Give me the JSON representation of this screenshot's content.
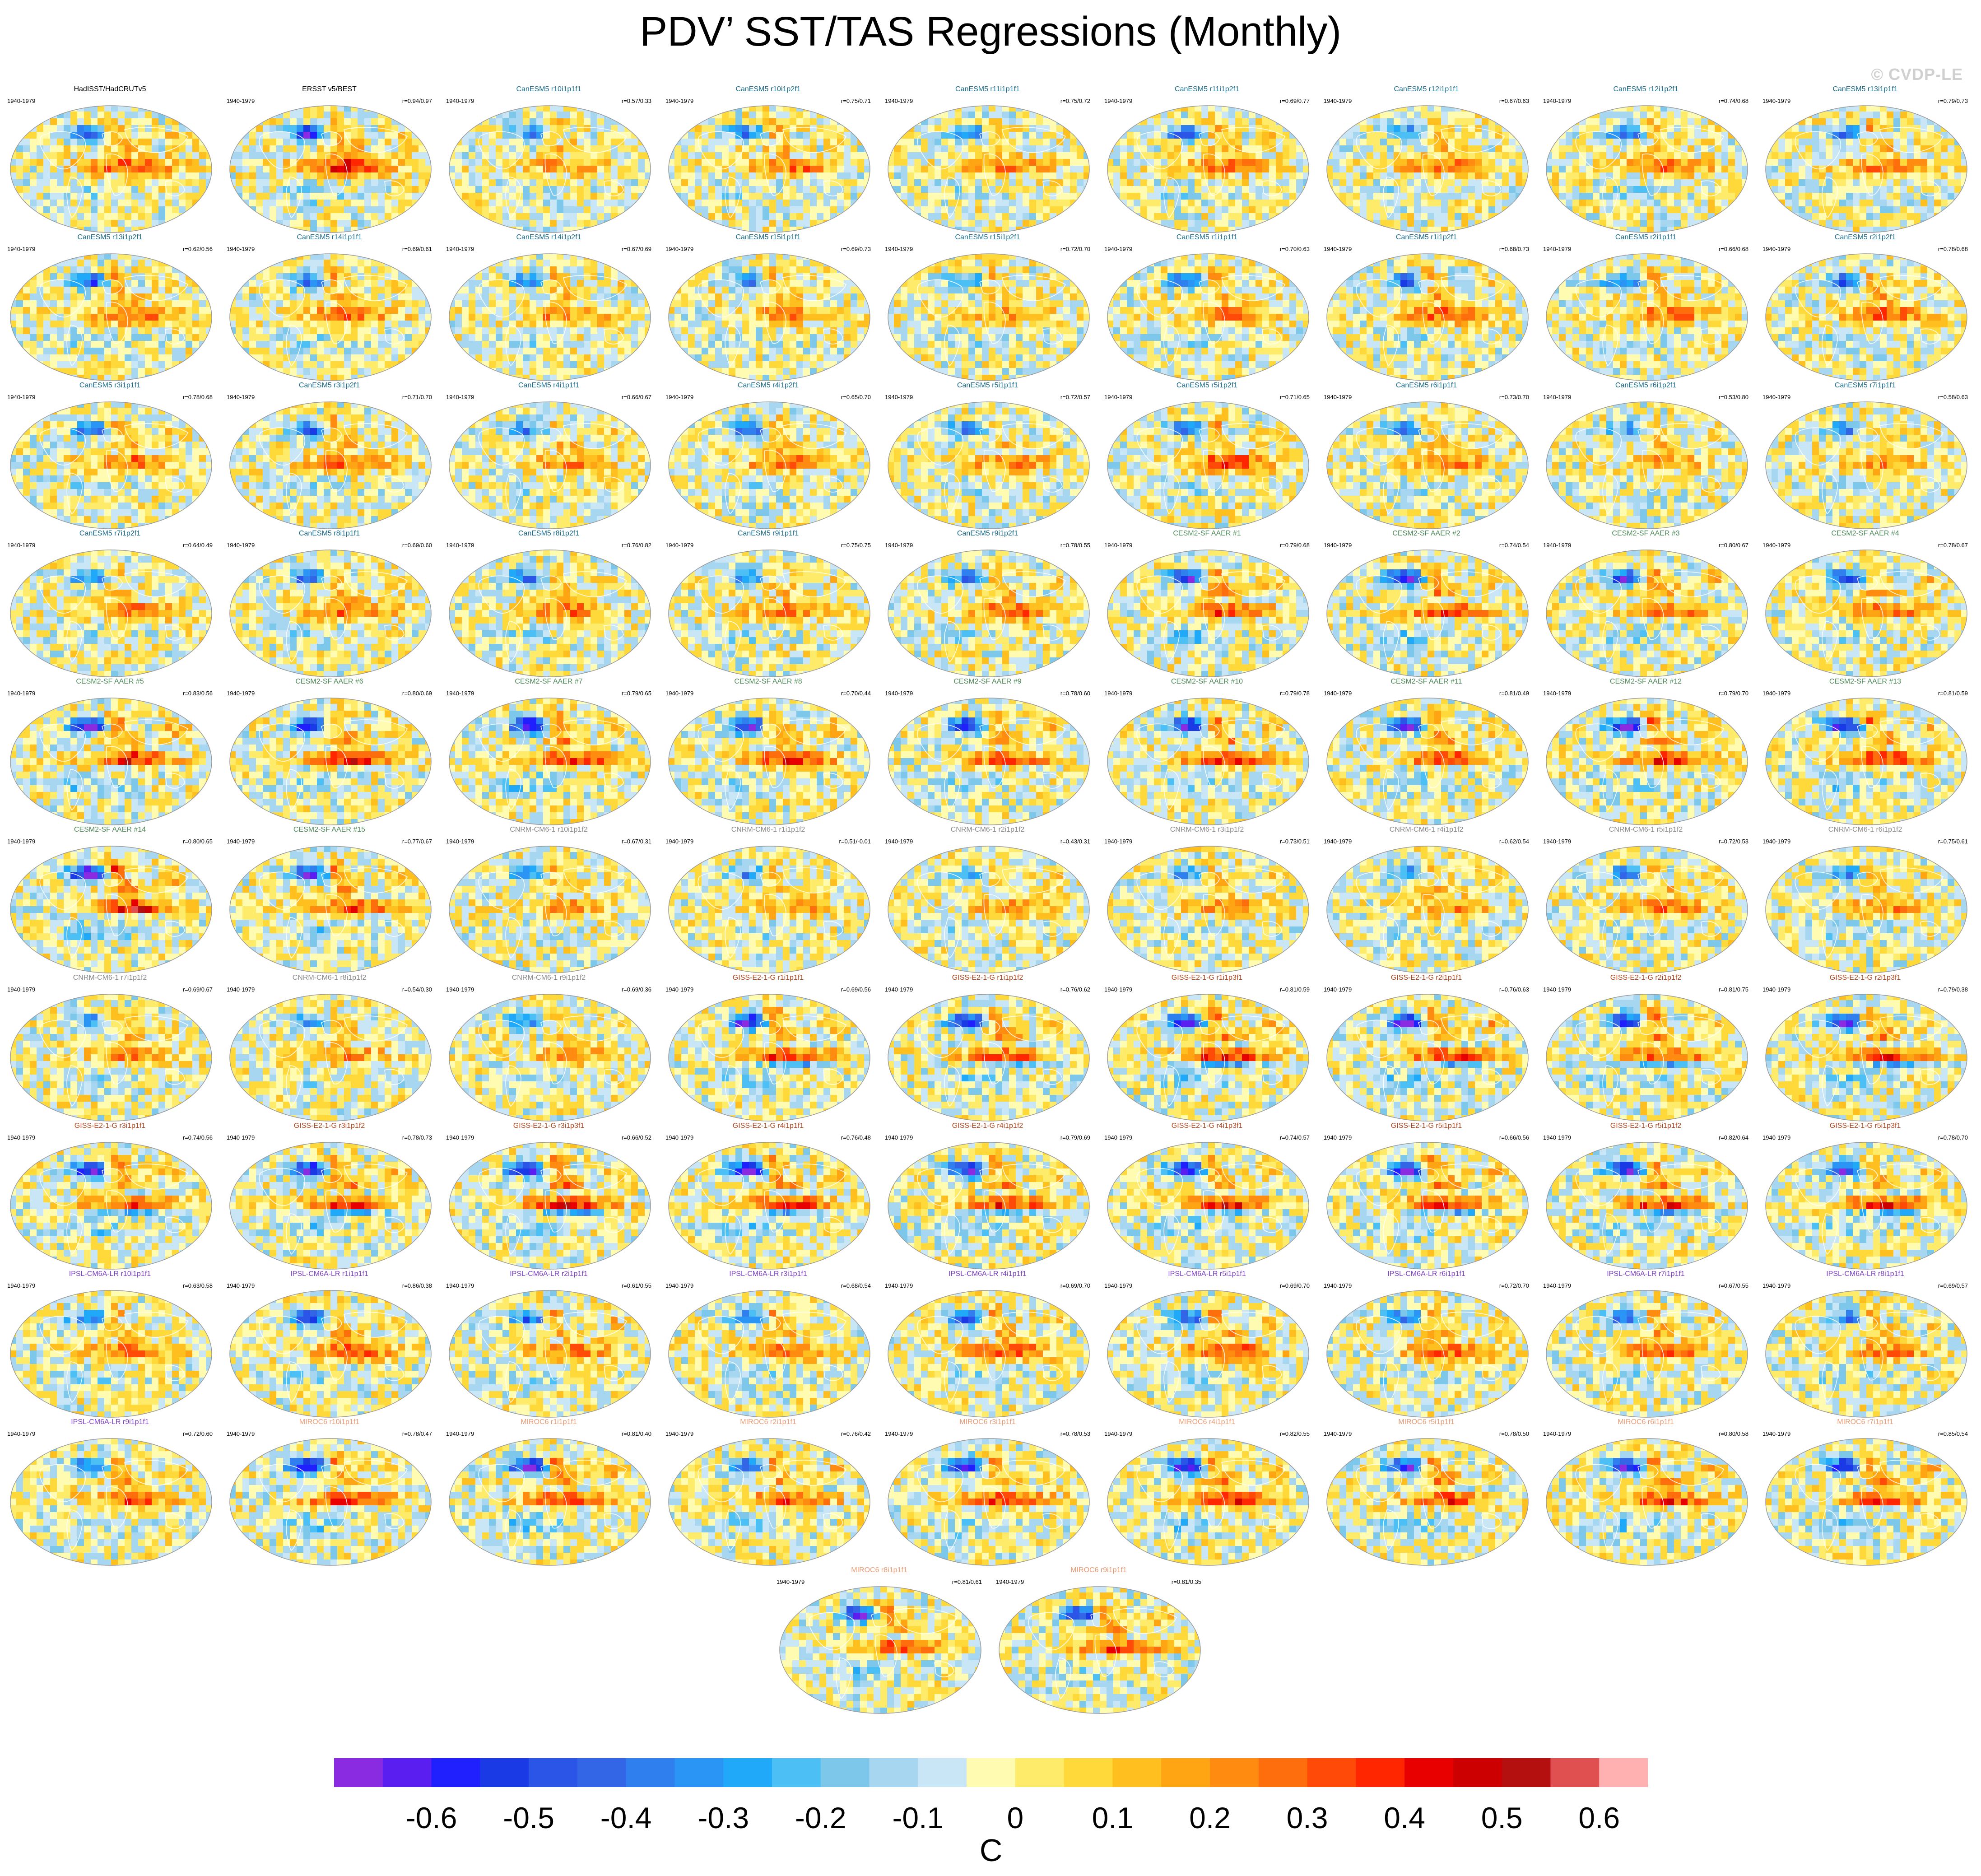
{
  "page": {
    "title": "PDV’ SST/TAS Regressions (Monthly)",
    "watermark": "© CVDP-LE"
  },
  "colors": {
    "HadISST": "#000000",
    "ERSST": "#000000",
    "CanESM5": "#1a6b8a",
    "CESM2": "#4f8a5a",
    "CNRM": "#8a8a8a",
    "GISS": "#b0451c",
    "IPSL": "#7c3fc4",
    "MIROC6": "#e89a72",
    "map_border": "#9a9a9a",
    "coast": "#ffffff"
  },
  "panels": [
    {
      "title": "HadISST/HadCRUTv5",
      "period": "1940-1979",
      "corr": "",
      "model": "HadISST",
      "pattern": 0,
      "strength": 0.7,
      "seed": 1
    },
    {
      "title": "ERSST v5/BEST",
      "period": "1940-1979",
      "corr": "r=0.94/0.97",
      "model": "ERSST",
      "pattern": 0,
      "strength": 0.8,
      "seed": 2
    },
    {
      "title": "CanESM5 r10i1p1f1",
      "period": "1940-1979",
      "corr": "r=0.57/0.33",
      "model": "CanESM5",
      "pattern": 1,
      "strength": 0.45,
      "seed": 3
    },
    {
      "title": "CanESM5 r10i1p2f1",
      "period": "1940-1979",
      "corr": "r=0.75/0.71",
      "model": "CanESM5",
      "pattern": 1,
      "strength": 0.55,
      "seed": 4
    },
    {
      "title": "CanESM5 r11i1p1f1",
      "period": "1940-1979",
      "corr": "r=0.75/0.72",
      "model": "CanESM5",
      "pattern": 1,
      "strength": 0.5,
      "seed": 5
    },
    {
      "title": "CanESM5 r11i1p2f1",
      "period": "1940-1979",
      "corr": "r=0.69/0.77",
      "model": "CanESM5",
      "pattern": 1,
      "strength": 0.6,
      "seed": 6
    },
    {
      "title": "CanESM5 r12i1p1f1",
      "period": "1940-1979",
      "corr": "r=0.67/0.63",
      "model": "CanESM5",
      "pattern": 1,
      "strength": 0.5,
      "seed": 7
    },
    {
      "title": "CanESM5 r12i1p2f1",
      "period": "1940-1979",
      "corr": "r=0.74/0.68",
      "model": "CanESM5",
      "pattern": 1,
      "strength": 0.55,
      "seed": 8
    },
    {
      "title": "CanESM5 r13i1p1f1",
      "period": "1940-1979",
      "corr": "r=0.79/0.73",
      "model": "CanESM5",
      "pattern": 1,
      "strength": 0.5,
      "seed": 9
    },
    {
      "title": "CanESM5 r13i1p2f1",
      "period": "1940-1979",
      "corr": "r=0.62/0.56",
      "model": "CanESM5",
      "pattern": 1,
      "strength": 0.6,
      "seed": 10
    },
    {
      "title": "CanESM5 r14i1p1f1",
      "period": "1940-1979",
      "corr": "r=0.69/0.61",
      "model": "CanESM5",
      "pattern": 1,
      "strength": 0.55,
      "seed": 11
    },
    {
      "title": "CanESM5 r14i1p2f1",
      "period": "1940-1979",
      "corr": "r=0.67/0.69",
      "model": "CanESM5",
      "pattern": 1,
      "strength": 0.5,
      "seed": 12
    },
    {
      "title": "CanESM5 r15i1p1f1",
      "period": "1940-1979",
      "corr": "r=0.69/0.73",
      "model": "CanESM5",
      "pattern": 1,
      "strength": 0.45,
      "seed": 13
    },
    {
      "title": "CanESM5 r15i1p2f1",
      "period": "1940-1979",
      "corr": "r=0.72/0.70",
      "model": "CanESM5",
      "pattern": 1,
      "strength": 0.45,
      "seed": 14
    },
    {
      "title": "CanESM5 r1i1p1f1",
      "period": "1940-1979",
      "corr": "r=0.70/0.63",
      "model": "CanESM5",
      "pattern": 1,
      "strength": 0.55,
      "seed": 15
    },
    {
      "title": "CanESM5 r1i1p2f1",
      "period": "1940-1979",
      "corr": "r=0.68/0.73",
      "model": "CanESM5",
      "pattern": 1,
      "strength": 0.6,
      "seed": 16
    },
    {
      "title": "CanESM5 r2i1p1f1",
      "period": "1940-1979",
      "corr": "r=0.66/0.68",
      "model": "CanESM5",
      "pattern": 1,
      "strength": 0.55,
      "seed": 17
    },
    {
      "title": "CanESM5 r2i1p2f1",
      "period": "1940-1979",
      "corr": "r=0.78/0.68",
      "model": "CanESM5",
      "pattern": 1,
      "strength": 0.6,
      "seed": 18
    },
    {
      "title": "CanESM5 r3i1p1f1",
      "period": "1940-1979",
      "corr": "r=0.78/0.68",
      "model": "CanESM5",
      "pattern": 1,
      "strength": 0.55,
      "seed": 19
    },
    {
      "title": "CanESM5 r3i1p2f1",
      "period": "1940-1979",
      "corr": "r=0.71/0.70",
      "model": "CanESM5",
      "pattern": 1,
      "strength": 0.6,
      "seed": 20
    },
    {
      "title": "CanESM5 r4i1p1f1",
      "period": "1940-1979",
      "corr": "r=0.66/0.67",
      "model": "CanESM5",
      "pattern": 1,
      "strength": 0.45,
      "seed": 21
    },
    {
      "title": "CanESM5 r4i1p2f1",
      "period": "1940-1979",
      "corr": "r=0.65/0.70",
      "model": "CanESM5",
      "pattern": 1,
      "strength": 0.55,
      "seed": 22
    },
    {
      "title": "CanESM5 r5i1p1f1",
      "period": "1940-1979",
      "corr": "r=0.72/0.57",
      "model": "CanESM5",
      "pattern": 1,
      "strength": 0.45,
      "seed": 23
    },
    {
      "title": "CanESM5 r5i1p2f1",
      "period": "1940-1979",
      "corr": "r=0.71/0.65",
      "model": "CanESM5",
      "pattern": 1,
      "strength": 0.65,
      "seed": 24
    },
    {
      "title": "CanESM5 r6i1p1f1",
      "period": "1940-1979",
      "corr": "r=0.73/0.70",
      "model": "CanESM5",
      "pattern": 1,
      "strength": 0.5,
      "seed": 25
    },
    {
      "title": "CanESM5 r6i1p2f1",
      "period": "1940-1979",
      "corr": "r=0.53/0.80",
      "model": "CanESM5",
      "pattern": 1,
      "strength": 0.4,
      "seed": 26
    },
    {
      "title": "CanESM5 r7i1p1f1",
      "period": "1940-1979",
      "corr": "r=0.58/0.63",
      "model": "CanESM5",
      "pattern": 1,
      "strength": 0.45,
      "seed": 27
    },
    {
      "title": "CanESM5 r7i1p2f1",
      "period": "1940-1979",
      "corr": "r=0.64/0.49",
      "model": "CanESM5",
      "pattern": 1,
      "strength": 0.5,
      "seed": 28
    },
    {
      "title": "CanESM5 r8i1p1f1",
      "period": "1940-1979",
      "corr": "r=0.69/0.60",
      "model": "CanESM5",
      "pattern": 1,
      "strength": 0.55,
      "seed": 29
    },
    {
      "title": "CanESM5 r8i1p2f1",
      "period": "1940-1979",
      "corr": "r=0.76/0.82",
      "model": "CanESM5",
      "pattern": 1,
      "strength": 0.55,
      "seed": 30
    },
    {
      "title": "CanESM5 r9i1p1f1",
      "period": "1940-1979",
      "corr": "r=0.75/0.75",
      "model": "CanESM5",
      "pattern": 1,
      "strength": 0.5,
      "seed": 31
    },
    {
      "title": "CanESM5 r9i1p2f1",
      "period": "1940-1979",
      "corr": "r=0.78/0.55",
      "model": "CanESM5",
      "pattern": 1,
      "strength": 0.6,
      "seed": 32
    },
    {
      "title": "CESM2-SF AAER #1",
      "period": "1940-1979",
      "corr": "r=0.79/0.68",
      "model": "CESM2",
      "pattern": 2,
      "strength": 0.85,
      "seed": 33
    },
    {
      "title": "CESM2-SF AAER #2",
      "period": "1940-1979",
      "corr": "r=0.74/0.54",
      "model": "CESM2",
      "pattern": 2,
      "strength": 0.8,
      "seed": 34
    },
    {
      "title": "CESM2-SF AAER #3",
      "period": "1940-1979",
      "corr": "r=0.80/0.67",
      "model": "CESM2",
      "pattern": 2,
      "strength": 0.75,
      "seed": 35
    },
    {
      "title": "CESM2-SF AAER #4",
      "period": "1940-1979",
      "corr": "r=0.78/0.67",
      "model": "CESM2",
      "pattern": 2,
      "strength": 0.7,
      "seed": 36
    },
    {
      "title": "CESM2-SF AAER #5",
      "period": "1940-1979",
      "corr": "r=0.83/0.56",
      "model": "CESM2",
      "pattern": 2,
      "strength": 0.95,
      "seed": 37
    },
    {
      "title": "CESM2-SF AAER #6",
      "period": "1940-1979",
      "corr": "r=0.80/0.69",
      "model": "CESM2",
      "pattern": 2,
      "strength": 0.9,
      "seed": 38
    },
    {
      "title": "CESM2-SF AAER #7",
      "period": "1940-1979",
      "corr": "r=0.79/0.65",
      "model": "CESM2",
      "pattern": 2,
      "strength": 0.85,
      "seed": 39
    },
    {
      "title": "CESM2-SF AAER #8",
      "period": "1940-1979",
      "corr": "r=0.70/0.44",
      "model": "CESM2",
      "pattern": 2,
      "strength": 0.85,
      "seed": 40
    },
    {
      "title": "CESM2-SF AAER #9",
      "period": "1940-1979",
      "corr": "r=0.78/0.60",
      "model": "CESM2",
      "pattern": 2,
      "strength": 0.8,
      "seed": 41
    },
    {
      "title": "CESM2-SF AAER #10",
      "period": "1940-1979",
      "corr": "r=0.79/0.78",
      "model": "CESM2",
      "pattern": 2,
      "strength": 0.85,
      "seed": 42
    },
    {
      "title": "CESM2-SF AAER #11",
      "period": "1940-1979",
      "corr": "r=0.81/0.49",
      "model": "CESM2",
      "pattern": 2,
      "strength": 0.9,
      "seed": 43
    },
    {
      "title": "CESM2-SF AAER #12",
      "period": "1940-1979",
      "corr": "r=0.79/0.70",
      "model": "CESM2",
      "pattern": 2,
      "strength": 0.85,
      "seed": 44
    },
    {
      "title": "CESM2-SF AAER #13",
      "period": "1940-1979",
      "corr": "r=0.81/0.59",
      "model": "CESM2",
      "pattern": 2,
      "strength": 0.85,
      "seed": 45
    },
    {
      "title": "CESM2-SF AAER #14",
      "period": "1940-1979",
      "corr": "r=0.80/0.65",
      "model": "CESM2",
      "pattern": 2,
      "strength": 1.0,
      "seed": 46
    },
    {
      "title": "CESM2-SF AAER #15",
      "period": "1940-1979",
      "corr": "r=0.77/0.67",
      "model": "CESM2",
      "pattern": 2,
      "strength": 0.75,
      "seed": 47
    },
    {
      "title": "CNRM-CM6-1 r10i1p1f2",
      "period": "1940-1979",
      "corr": "r=0.67/0.31",
      "model": "CNRM",
      "pattern": 3,
      "strength": 0.4,
      "seed": 48
    },
    {
      "title": "CNRM-CM6-1 r1i1p1f2",
      "period": "1940-1979",
      "corr": "r=0.51/-0.01",
      "model": "CNRM",
      "pattern": 3,
      "strength": 0.4,
      "seed": 49
    },
    {
      "title": "CNRM-CM6-1 r2i1p1f2",
      "period": "1940-1979",
      "corr": "r=0.43/0.31",
      "model": "CNRM",
      "pattern": 3,
      "strength": 0.35,
      "seed": 50
    },
    {
      "title": "CNRM-CM6-1 r3i1p1f2",
      "period": "1940-1979",
      "corr": "r=0.73/0.51",
      "model": "CNRM",
      "pattern": 3,
      "strength": 0.45,
      "seed": 51
    },
    {
      "title": "CNRM-CM6-1 r4i1p1f2",
      "period": "1940-1979",
      "corr": "r=0.62/0.54",
      "model": "CNRM",
      "pattern": 3,
      "strength": 0.45,
      "seed": 52
    },
    {
      "title": "CNRM-CM6-1 r5i1p1f2",
      "period": "1940-1979",
      "corr": "r=0.72/0.53",
      "model": "CNRM",
      "pattern": 3,
      "strength": 0.5,
      "seed": 53
    },
    {
      "title": "CNRM-CM6-1 r6i1p1f2",
      "period": "1940-1979",
      "corr": "r=0.75/0.61",
      "model": "CNRM",
      "pattern": 3,
      "strength": 0.45,
      "seed": 54
    },
    {
      "title": "CNRM-CM6-1 r7i1p1f2",
      "period": "1940-1979",
      "corr": "r=0.69/0.67",
      "model": "CNRM",
      "pattern": 3,
      "strength": 0.45,
      "seed": 55
    },
    {
      "title": "CNRM-CM6-1 r8i1p1f2",
      "period": "1940-1979",
      "corr": "r=0.54/0.30",
      "model": "CNRM",
      "pattern": 3,
      "strength": 0.4,
      "seed": 56
    },
    {
      "title": "CNRM-CM6-1 r9i1p1f2",
      "period": "1940-1979",
      "corr": "r=0.69/0.36",
      "model": "CNRM",
      "pattern": 3,
      "strength": 0.4,
      "seed": 57
    },
    {
      "title": "GISS-E2-1-G r1i1p1f1",
      "period": "1940-1979",
      "corr": "r=0.69/0.56",
      "model": "GISS",
      "pattern": 4,
      "strength": 0.9,
      "seed": 58
    },
    {
      "title": "GISS-E2-1-G r1i1p1f2",
      "period": "1940-1979",
      "corr": "r=0.76/0.62",
      "model": "GISS",
      "pattern": 4,
      "strength": 0.85,
      "seed": 59
    },
    {
      "title": "GISS-E2-1-G r1i1p3f1",
      "period": "1940-1979",
      "corr": "r=0.81/0.59",
      "model": "GISS",
      "pattern": 4,
      "strength": 0.9,
      "seed": 60
    },
    {
      "title": "GISS-E2-1-G r2i1p1f1",
      "period": "1940-1979",
      "corr": "r=0.76/0.63",
      "model": "GISS",
      "pattern": 4,
      "strength": 0.85,
      "seed": 61
    },
    {
      "title": "GISS-E2-1-G r2i1p1f2",
      "period": "1940-1979",
      "corr": "r=0.81/0.75",
      "model": "GISS",
      "pattern": 4,
      "strength": 0.85,
      "seed": 62
    },
    {
      "title": "GISS-E2-1-G r2i1p3f1",
      "period": "1940-1979",
      "corr": "r=0.79/0.38",
      "model": "GISS",
      "pattern": 4,
      "strength": 0.85,
      "seed": 63
    },
    {
      "title": "GISS-E2-1-G r3i1p1f1",
      "period": "1940-1979",
      "corr": "r=0.74/0.56",
      "model": "GISS",
      "pattern": 4,
      "strength": 0.85,
      "seed": 64
    },
    {
      "title": "GISS-E2-1-G r3i1p1f2",
      "period": "1940-1979",
      "corr": "r=0.78/0.73",
      "model": "GISS",
      "pattern": 4,
      "strength": 0.9,
      "seed": 65
    },
    {
      "title": "GISS-E2-1-G r3i1p3f1",
      "period": "1940-1979",
      "corr": "r=0.66/0.52",
      "model": "GISS",
      "pattern": 4,
      "strength": 0.95,
      "seed": 66
    },
    {
      "title": "GISS-E2-1-G r4i1p1f1",
      "period": "1940-1979",
      "corr": "r=0.76/0.48",
      "model": "GISS",
      "pattern": 4,
      "strength": 0.9,
      "seed": 67
    },
    {
      "title": "GISS-E2-1-G r4i1p1f2",
      "period": "1940-1979",
      "corr": "r=0.79/0.69",
      "model": "GISS",
      "pattern": 4,
      "strength": 0.85,
      "seed": 68
    },
    {
      "title": "GISS-E2-1-G r4i1p3f1",
      "period": "1940-1979",
      "corr": "r=0.74/0.57",
      "model": "GISS",
      "pattern": 4,
      "strength": 0.9,
      "seed": 69
    },
    {
      "title": "GISS-E2-1-G r5i1p1f1",
      "period": "1940-1979",
      "corr": "r=0.66/0.56",
      "model": "GISS",
      "pattern": 4,
      "strength": 0.9,
      "seed": 70
    },
    {
      "title": "GISS-E2-1-G r5i1p1f2",
      "period": "1940-1979",
      "corr": "r=0.82/0.64",
      "model": "GISS",
      "pattern": 4,
      "strength": 0.85,
      "seed": 71
    },
    {
      "title": "GISS-E2-1-G r5i1p3f1",
      "period": "1940-1979",
      "corr": "r=0.78/0.70",
      "model": "GISS",
      "pattern": 4,
      "strength": 0.85,
      "seed": 72
    },
    {
      "title": "IPSL-CM6A-LR r10i1p1f1",
      "period": "1940-1979",
      "corr": "r=0.63/0.58",
      "model": "IPSL",
      "pattern": 5,
      "strength": 0.55,
      "seed": 73
    },
    {
      "title": "IPSL-CM6A-LR r1i1p1f1",
      "period": "1940-1979",
      "corr": "r=0.86/0.38",
      "model": "IPSL",
      "pattern": 5,
      "strength": 0.65,
      "seed": 74
    },
    {
      "title": "IPSL-CM6A-LR r2i1p1f1",
      "period": "1940-1979",
      "corr": "r=0.61/0.55",
      "model": "IPSL",
      "pattern": 5,
      "strength": 0.55,
      "seed": 75
    },
    {
      "title": "IPSL-CM6A-LR r3i1p1f1",
      "period": "1940-1979",
      "corr": "r=0.68/0.54",
      "model": "IPSL",
      "pattern": 5,
      "strength": 0.55,
      "seed": 76
    },
    {
      "title": "IPSL-CM6A-LR r4i1p1f1",
      "period": "1940-1979",
      "corr": "r=0.69/0.70",
      "model": "IPSL",
      "pattern": 5,
      "strength": 0.6,
      "seed": 77
    },
    {
      "title": "IPSL-CM6A-LR r5i1p1f1",
      "period": "1940-1979",
      "corr": "r=0.69/0.70",
      "model": "IPSL",
      "pattern": 5,
      "strength": 0.7,
      "seed": 78
    },
    {
      "title": "IPSL-CM6A-LR r6i1p1f1",
      "period": "1940-1979",
      "corr": "r=0.72/0.70",
      "model": "IPSL",
      "pattern": 5,
      "strength": 0.55,
      "seed": 79
    },
    {
      "title": "IPSL-CM6A-LR r7i1p1f1",
      "period": "1940-1979",
      "corr": "r=0.67/0.55",
      "model": "IPSL",
      "pattern": 5,
      "strength": 0.6,
      "seed": 80
    },
    {
      "title": "IPSL-CM6A-LR r8i1p1f1",
      "period": "1940-1979",
      "corr": "r=0.69/0.57",
      "model": "IPSL",
      "pattern": 5,
      "strength": 0.5,
      "seed": 81
    },
    {
      "title": "IPSL-CM6A-LR r9i1p1f1",
      "period": "1940-1979",
      "corr": "r=0.72/0.60",
      "model": "IPSL",
      "pattern": 5,
      "strength": 0.6,
      "seed": 82
    },
    {
      "title": "MIROC6 r10i1p1f1",
      "period": "1940-1979",
      "corr": "r=0.78/0.47",
      "model": "MIROC6",
      "pattern": 6,
      "strength": 0.9,
      "seed": 83
    },
    {
      "title": "MIROC6 r1i1p1f1",
      "period": "1940-1979",
      "corr": "r=0.81/0.40",
      "model": "MIROC6",
      "pattern": 6,
      "strength": 0.9,
      "seed": 84
    },
    {
      "title": "MIROC6 r2i1p1f1",
      "period": "1940-1979",
      "corr": "r=0.76/0.42",
      "model": "MIROC6",
      "pattern": 6,
      "strength": 0.75,
      "seed": 85
    },
    {
      "title": "MIROC6 r3i1p1f1",
      "period": "1940-1979",
      "corr": "r=0.78/0.53",
      "model": "MIROC6",
      "pattern": 6,
      "strength": 0.85,
      "seed": 86
    },
    {
      "title": "MIROC6 r4i1p1f1",
      "period": "1940-1979",
      "corr": "r=0.82/0.55",
      "model": "MIROC6",
      "pattern": 6,
      "strength": 0.9,
      "seed": 87
    },
    {
      "title": "MIROC6 r5i1p1f1",
      "period": "1940-1979",
      "corr": "r=0.78/0.50",
      "model": "MIROC6",
      "pattern": 6,
      "strength": 0.8,
      "seed": 88
    },
    {
      "title": "MIROC6 r6i1p1f1",
      "period": "1940-1979",
      "corr": "r=0.80/0.58",
      "model": "MIROC6",
      "pattern": 6,
      "strength": 0.85,
      "seed": 89
    },
    {
      "title": "MIROC6 r7i1p1f1",
      "period": "1940-1979",
      "corr": "r=0.85/0.54",
      "model": "MIROC6",
      "pattern": 6,
      "strength": 0.8,
      "seed": 90
    },
    {
      "title": "MIROC6 r8i1p1f1",
      "period": "1940-1979",
      "corr": "r=0.81/0.61",
      "model": "MIROC6",
      "pattern": 6,
      "strength": 0.85,
      "seed": 91
    },
    {
      "title": "MIROC6 r9i1p1f1",
      "period": "1940-1979",
      "corr": "r=0.81/0.35",
      "model": "MIROC6",
      "pattern": 6,
      "strength": 0.8,
      "seed": 92
    }
  ],
  "colorbar": {
    "colors": [
      "#8a2be2",
      "#5a1ef0",
      "#2020ff",
      "#1a3ae6",
      "#2a55e6",
      "#3366e6",
      "#2f7fee",
      "#2a95f5",
      "#1fa9f8",
      "#4cc0f5",
      "#7dc8ea",
      "#a6d6f0",
      "#c8e6f5",
      "#fffbb0",
      "#ffeb6a",
      "#ffd83a",
      "#ffbf1f",
      "#ffa514",
      "#ff8c10",
      "#ff6e0c",
      "#ff4a08",
      "#ff2600",
      "#e80000",
      "#cc0000",
      "#b41010",
      "#e05050",
      "#ffb0b0"
    ],
    "labels": [
      "-0.6",
      "-0.5",
      "-0.4",
      "-0.3",
      "-0.2",
      "-0.1",
      "0",
      "0.1",
      "0.2",
      "0.3",
      "0.4",
      "0.5",
      "0.6"
    ],
    "units": "C"
  },
  "chart_data": {
    "type": "heatmap",
    "title": "PDV’ SST/TAS Regressions (Monthly)",
    "description_units": "C",
    "color_levels": [
      -0.65,
      -0.6,
      -0.55,
      -0.5,
      -0.45,
      -0.4,
      -0.35,
      -0.3,
      -0.25,
      -0.2,
      -0.15,
      -0.1,
      -0.05,
      0,
      0.05,
      0.1,
      0.15,
      0.2,
      0.25,
      0.3,
      0.35,
      0.4,
      0.45,
      0.5,
      0.55,
      0.6,
      0.65
    ],
    "tick_labels": [
      "-0.6",
      "-0.5",
      "-0.4",
      "-0.3",
      "-0.2",
      "-0.1",
      "0",
      "0.1",
      "0.2",
      "0.3",
      "0.4",
      "0.5",
      "0.6"
    ],
    "period": "1940-1979",
    "panel_count": 92
  }
}
